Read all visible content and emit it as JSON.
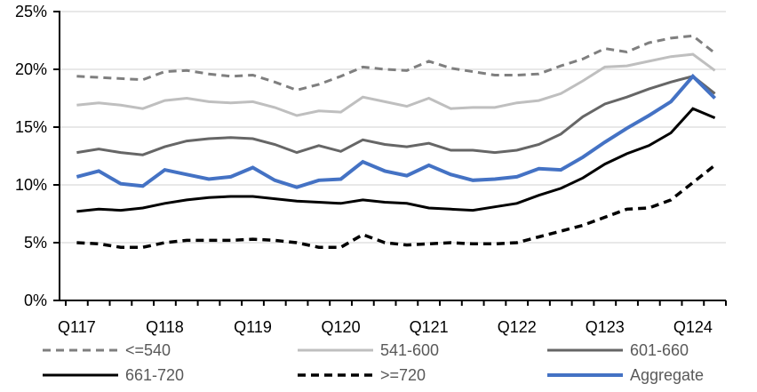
{
  "chart_data": {
    "type": "line",
    "title": "",
    "xlabel": "",
    "ylabel": "",
    "y_unit": "%",
    "ylim": [
      0,
      25
    ],
    "y_tick_step": 5,
    "y_tick_labels": [
      "0%",
      "5%",
      "10%",
      "15%",
      "20%",
      "25%"
    ],
    "grid": true,
    "legend_position": "bottom",
    "n_points": 30,
    "x_axis_labels": [
      "Q117",
      "Q118",
      "Q119",
      "Q120",
      "Q121",
      "Q122",
      "Q123",
      "Q124"
    ],
    "x_label_point_indices": [
      0,
      4,
      8,
      12,
      16,
      20,
      24,
      28
    ],
    "series": [
      {
        "name": "<=540",
        "color": "#7F7F7F",
        "style": "dashed",
        "width": 3,
        "values": [
          19.4,
          19.3,
          19.2,
          19.1,
          19.8,
          19.9,
          19.6,
          19.4,
          19.5,
          18.9,
          18.2,
          18.7,
          19.4,
          20.2,
          20.0,
          19.9,
          20.7,
          20.1,
          19.8,
          19.5,
          19.5,
          19.6,
          20.3,
          20.9,
          21.8,
          21.5,
          22.3,
          22.7,
          22.9,
          21.4
        ]
      },
      {
        "name": "541-600",
        "color": "#BFBFBF",
        "style": "solid",
        "width": 3,
        "values": [
          16.9,
          17.1,
          16.9,
          16.6,
          17.3,
          17.5,
          17.2,
          17.1,
          17.2,
          16.7,
          16.0,
          16.4,
          16.3,
          17.6,
          17.2,
          16.8,
          17.5,
          16.6,
          16.7,
          16.7,
          17.1,
          17.3,
          17.9,
          19.0,
          20.2,
          20.3,
          20.7,
          21.1,
          21.3,
          19.9
        ]
      },
      {
        "name": "601-660",
        "color": "#666666",
        "style": "solid",
        "width": 3,
        "values": [
          12.8,
          13.1,
          12.8,
          12.6,
          13.3,
          13.8,
          14.0,
          14.1,
          14.0,
          13.5,
          12.8,
          13.4,
          12.9,
          13.9,
          13.5,
          13.3,
          13.6,
          13.0,
          13.0,
          12.8,
          13.0,
          13.5,
          14.4,
          15.9,
          17.0,
          17.6,
          18.3,
          18.9,
          19.4,
          17.9
        ]
      },
      {
        "name": "661-720",
        "color": "#000000",
        "style": "solid",
        "width": 3,
        "values": [
          7.7,
          7.9,
          7.8,
          8.0,
          8.4,
          8.7,
          8.9,
          9.0,
          9.0,
          8.8,
          8.6,
          8.5,
          8.4,
          8.7,
          8.5,
          8.4,
          8.0,
          7.9,
          7.8,
          8.1,
          8.4,
          9.1,
          9.7,
          10.6,
          11.8,
          12.7,
          13.4,
          14.5,
          16.6,
          15.8
        ]
      },
      {
        "name": ">=720",
        "color": "#000000",
        "style": "dashed",
        "width": 3.5,
        "values": [
          5.0,
          4.9,
          4.6,
          4.6,
          5.0,
          5.2,
          5.2,
          5.2,
          5.3,
          5.2,
          5.0,
          4.6,
          4.6,
          5.7,
          5.0,
          4.8,
          4.9,
          5.0,
          4.9,
          4.9,
          5.0,
          5.5,
          6.0,
          6.5,
          7.2,
          7.9,
          8.0,
          8.7,
          10.2,
          11.7
        ]
      },
      {
        "name": "Aggregate",
        "color": "#4472C4",
        "style": "solid",
        "width": 4,
        "values": [
          10.7,
          11.2,
          10.1,
          9.9,
          11.3,
          10.9,
          10.5,
          10.7,
          11.5,
          10.4,
          9.8,
          10.4,
          10.5,
          12.0,
          11.2,
          10.8,
          11.7,
          10.9,
          10.4,
          10.5,
          10.7,
          11.4,
          11.3,
          12.4,
          13.7,
          14.9,
          16.0,
          17.2,
          19.4,
          17.5
        ]
      }
    ],
    "legend": {
      "rows": 2,
      "columns": 3,
      "order": [
        "<=540",
        "541-600",
        "601-660",
        "661-720",
        ">=720",
        "Aggregate"
      ]
    },
    "colors": {
      "gridline": "#D9D9D9",
      "axis": "#000000",
      "axis_label_text": "#000000",
      "legend_text": "#595959",
      "accent_blue": "#4472C4"
    }
  }
}
